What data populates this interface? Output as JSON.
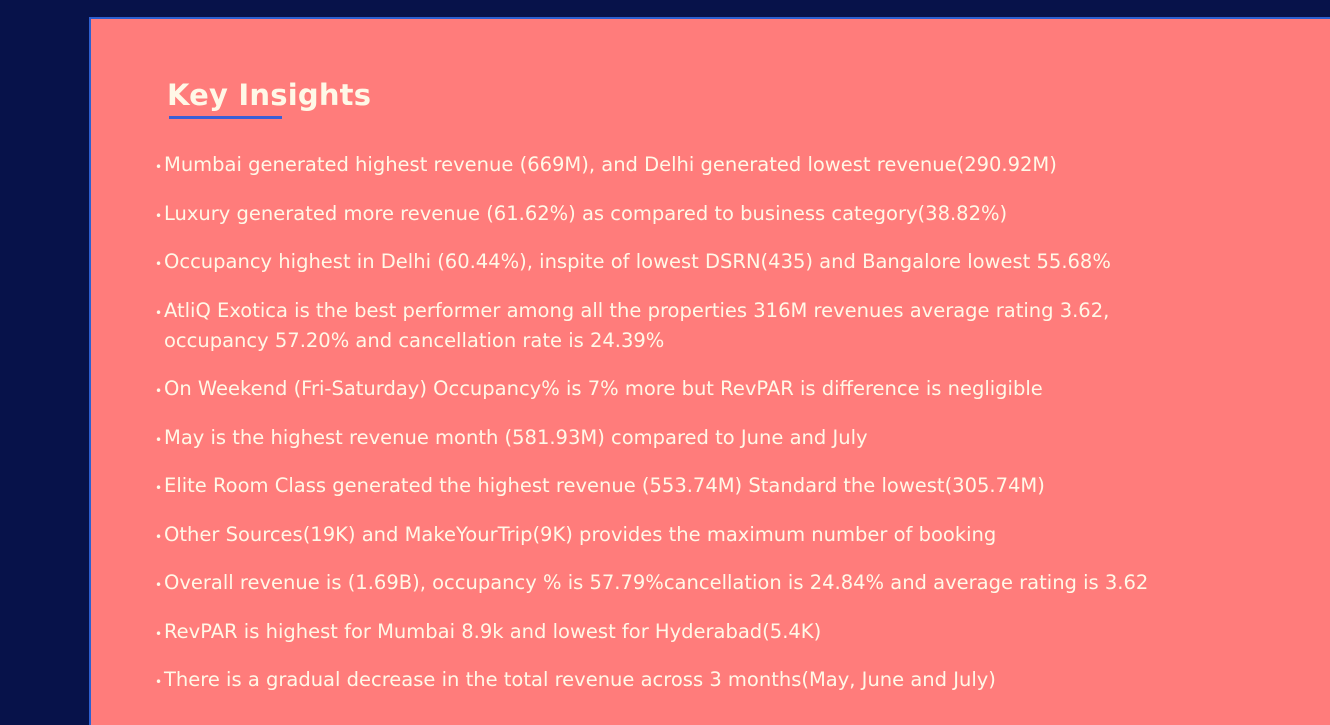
{
  "title": "Key Insights",
  "bullet_glyph": "•",
  "insights": [
    "Mumbai generated highest revenue (669M), and Delhi generated lowest revenue(290.92M)",
    "Luxury generated more revenue (61.62%) as compared to business category(38.82%)",
    "Occupancy highest in Delhi (60.44%), inspite of lowest DSRN(435) and Bangalore lowest 55.68%",
    "AtliQ Exotica is the best performer among all the properties 316M revenues average rating 3.62, occupancy 57.20% and cancellation rate is 24.39%",
    "On Weekend (Fri-Saturday) Occupancy% is 7% more but RevPAR is difference is negligible",
    "May is the highest revenue month (581.93M) compared to June and July",
    "Elite Room Class generated the highest revenue (553.74M) Standard the lowest(305.74M)",
    "Other Sources(19K) and MakeYourTrip(9K) provides the maximum number of booking",
    "Overall revenue is (1.69B), occupancy % is 57.79%cancellation is 24.84% and average rating is 3.62",
    "RevPAR is highest for Mumbai 8.9k and lowest for Hyderabad(5.4K)",
    "There is a gradual decrease in the total revenue across 3 months(May, June and July)"
  ],
  "colors": {
    "background": "#07124a",
    "panel": "#ff7c7b",
    "text": "#fff8e7",
    "accent": "#3b5fd6"
  }
}
